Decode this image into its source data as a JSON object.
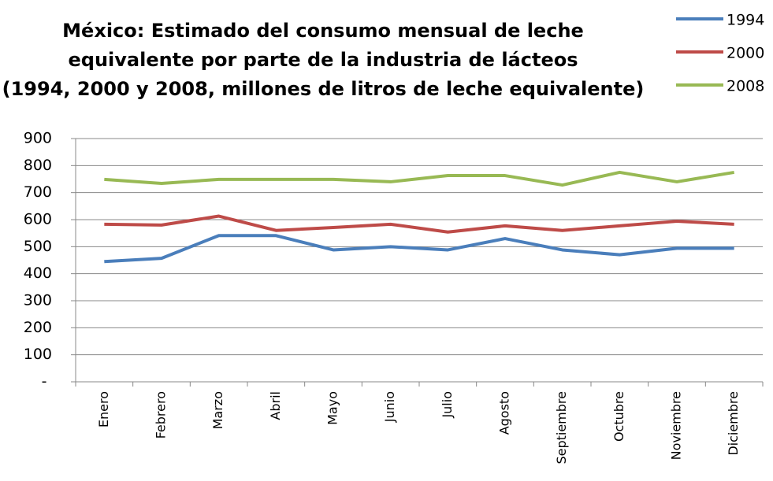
{
  "chart_data": {
    "type": "line",
    "title": [
      "México: Estimado del consumo mensual de leche",
      "equivalente por parte de la industria de lácteos",
      "(1994, 2000 y 2008,  millones de litros de leche equivalente)"
    ],
    "categories": [
      "Enero",
      "Febrero",
      "Marzo",
      "Abril",
      "Mayo",
      "Junio",
      "Julio",
      "Agosto",
      "Septiembre",
      "Octubre",
      "Noviembre",
      "Diciembre"
    ],
    "series": [
      {
        "name": "1994",
        "color": "#4a7ebb",
        "values": [
          445,
          457,
          541,
          541,
          488,
          500,
          488,
          530,
          488,
          470,
          494,
          494
        ]
      },
      {
        "name": "2000",
        "color": "#be4b48",
        "values": [
          583,
          580,
          613,
          560,
          571,
          583,
          554,
          577,
          560,
          577,
          594,
          583
        ]
      },
      {
        "name": "2008",
        "color": "#98b954",
        "values": [
          749,
          734,
          749,
          749,
          749,
          740,
          763,
          763,
          728,
          775,
          740,
          775
        ]
      }
    ],
    "ylim": [
      0,
      900
    ],
    "yticks": [
      {
        "value": 0,
        "label": "-"
      },
      100,
      200,
      300,
      400,
      500,
      600,
      700,
      800,
      900
    ],
    "grid": true,
    "legend": "top-right"
  }
}
